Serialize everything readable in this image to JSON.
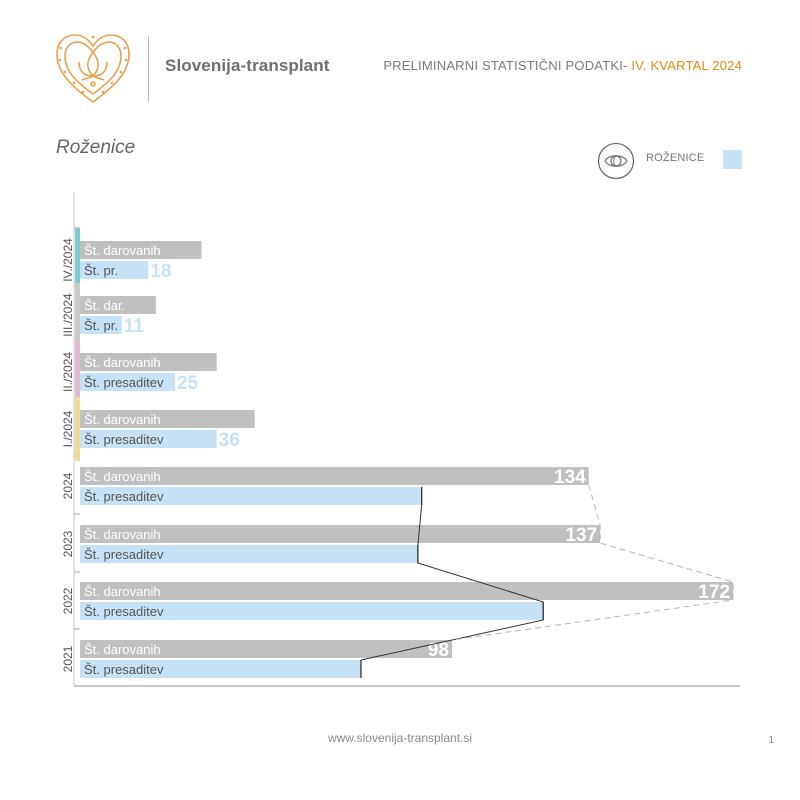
{
  "header": {
    "brand": "Slovenija-transplant",
    "subtitle_prefix": "PRELIMINARNI STATISTIČNI PODATKI- ",
    "subtitle_highlight": "IV. KVARTAL 2024"
  },
  "page_title": "Roženice",
  "legend": {
    "label": "ROŽENICE",
    "icon": "eye-icon",
    "swatch_color": "#c6e2f7"
  },
  "footer": {
    "url": "www.slovenija-transplant.si",
    "page_number": "1"
  },
  "chart_data": {
    "type": "bar",
    "orientation": "horizontal",
    "categories": [
      "IV./2024",
      "III./2024",
      "II./2024",
      "I./2024",
      "2024",
      "2023",
      "2022",
      "2021"
    ],
    "category_colors": [
      "#7ecbd0",
      "#c9c9c9",
      "#e4b8d2",
      "#f2da98",
      null,
      null,
      null,
      null
    ],
    "series": [
      {
        "key": "donated",
        "color": "#c0c0c0",
        "value_color": "#ffffff",
        "labels": [
          "Št. darovanih",
          "Št. dar.",
          "Št. darovanih",
          "Št. darovanih",
          "Št. darovanih",
          "Št. darovanih",
          "Št. darovanih",
          "Št. darovanih"
        ],
        "values": [
          32,
          20,
          36,
          46,
          134,
          137,
          172,
          98
        ]
      },
      {
        "key": "transplanted",
        "color": "#c6e2f7",
        "value_color": "#c6e2f7",
        "labels": [
          "Št. pr.",
          "Št. pr.",
          "Št. presaditev",
          "Št. presaditev",
          "Št. presaditev",
          "Št. presaditev",
          "Št. presaditev",
          "Št. presaditev"
        ],
        "values": [
          18,
          11,
          25,
          36,
          90,
          89,
          122,
          74
        ]
      }
    ],
    "trend_lines": [
      {
        "series": "transplanted",
        "style": "solid",
        "color": "#333333",
        "categories": [
          "2024",
          "2023",
          "2022",
          "2021"
        ]
      },
      {
        "series": "donated",
        "style": "dashed",
        "color": "#b5b5b5",
        "categories": [
          "2024",
          "2023",
          "2022",
          "2021"
        ]
      }
    ],
    "xlim": [
      0,
      172
    ]
  }
}
